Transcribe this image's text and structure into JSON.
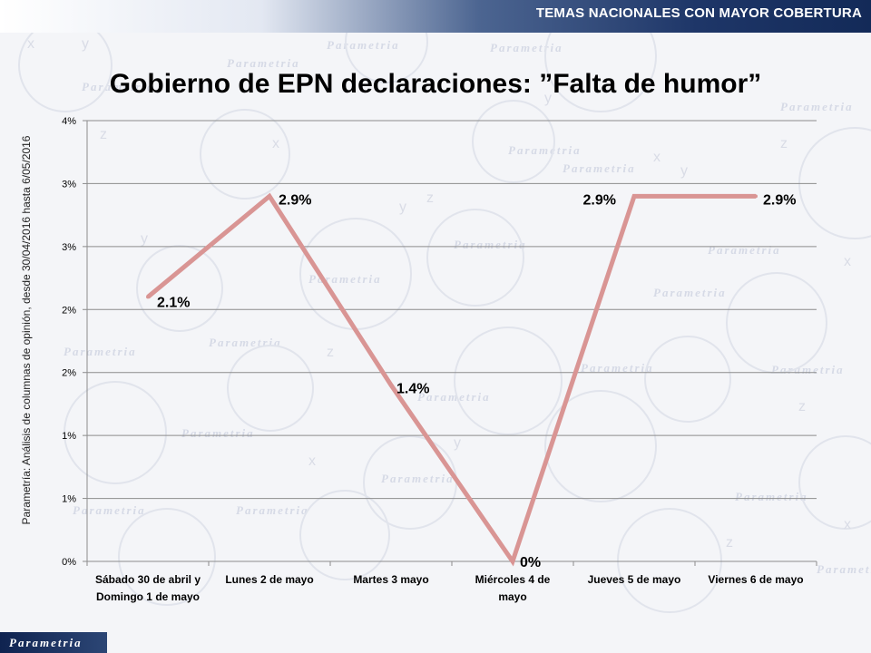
{
  "header": {
    "title": "TEMAS NACIONALES CON MAYOR COBERTURA"
  },
  "watermark": {
    "text": "Parametria",
    "glyphs": [
      "x",
      "y",
      "z"
    ]
  },
  "footer": {
    "logo": "Parametria"
  },
  "side_note": "Parametría: Análisis de columnas de opinión, desde 30/04/2016 hasta  6/05/2016",
  "chart_data": {
    "type": "line",
    "title": "Gobierno de EPN declaraciones: ”Falta de humor”",
    "categories": [
      [
        "Sábado 30 de abril y",
        "Domingo 1 de mayo"
      ],
      [
        "Lunes 2 de mayo"
      ],
      [
        "Martes 3 mayo"
      ],
      [
        "Miércoles 4 de",
        "mayo"
      ],
      [
        "Jueves 5 de mayo"
      ],
      [
        "Viernes 6 de mayo"
      ]
    ],
    "values": [
      2.1,
      2.9,
      1.4,
      0,
      2.9,
      2.9
    ],
    "data_labels": [
      "2.1%",
      "2.9%",
      "1.4%",
      "0%",
      "2.9%",
      "2.9%"
    ],
    "y_tick_labels": [
      "0%",
      "1%",
      "1%",
      "2%",
      "2%",
      "3%",
      "3%",
      "4%"
    ],
    "y_tick_values": [
      0,
      0.5,
      1,
      1.5,
      2,
      2.5,
      3,
      3.5
    ],
    "ylim": [
      0,
      3.5
    ],
    "grid": true,
    "line_color": "#d99594",
    "grid_color": "#8c8c8c"
  }
}
